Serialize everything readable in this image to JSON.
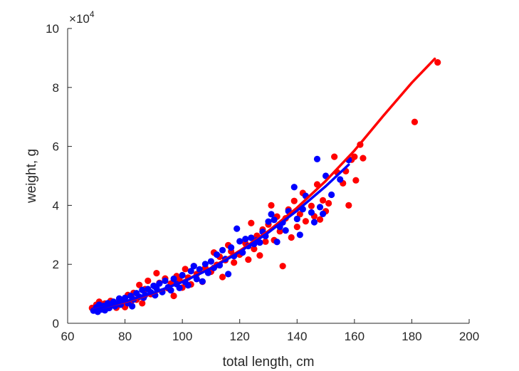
{
  "chart_data": {
    "type": "scatter",
    "title": "",
    "xlabel": "total length, cm",
    "ylabel": "weight, g",
    "xlim": [
      60,
      200
    ],
    "ylim": [
      0,
      100000
    ],
    "xticks": [
      60,
      80,
      100,
      120,
      140,
      160,
      180,
      200
    ],
    "yticks": [
      0,
      20000,
      40000,
      60000,
      80000,
      100000
    ],
    "ytick_labels": [
      "0",
      "2",
      "4",
      "6",
      "8",
      "10"
    ],
    "y_exponent": {
      "base": "10",
      "power": "4"
    },
    "grid": false,
    "series": [
      {
        "name": "red",
        "color": "#ff0000",
        "points": [
          [
            68.5,
            5200
          ],
          [
            70.0,
            6300
          ],
          [
            71.0,
            7300
          ],
          [
            72.0,
            4800
          ],
          [
            73.0,
            6700
          ],
          [
            74.0,
            5600
          ],
          [
            75.0,
            7600
          ],
          [
            76.0,
            6100
          ],
          [
            77.0,
            5300
          ],
          [
            78.0,
            8300
          ],
          [
            79.0,
            6900
          ],
          [
            80.0,
            5500
          ],
          [
            81.0,
            9600
          ],
          [
            82.0,
            7100
          ],
          [
            83.0,
            10300
          ],
          [
            84.0,
            8000
          ],
          [
            85.0,
            13000
          ],
          [
            86.0,
            6800
          ],
          [
            87.0,
            11600
          ],
          [
            88.0,
            14400
          ],
          [
            89.0,
            9900
          ],
          [
            90.0,
            12700
          ],
          [
            91.0,
            17000
          ],
          [
            92.0,
            13700
          ],
          [
            93.0,
            10800
          ],
          [
            94.0,
            15200
          ],
          [
            95.0,
            11900
          ],
          [
            96.0,
            13500
          ],
          [
            97.0,
            9300
          ],
          [
            98.0,
            16000
          ],
          [
            99.0,
            14700
          ],
          [
            100.0,
            12100
          ],
          [
            101.0,
            18400
          ],
          [
            102.0,
            15500
          ],
          [
            103.0,
            13200
          ],
          [
            104.0,
            19400
          ],
          [
            105.0,
            16700
          ],
          [
            107.0,
            14100
          ],
          [
            108.0,
            18800
          ],
          [
            110.0,
            17500
          ],
          [
            111.0,
            24000
          ],
          [
            112.0,
            19800
          ],
          [
            113.0,
            22600
          ],
          [
            114.0,
            15700
          ],
          [
            115.0,
            21400
          ],
          [
            116.0,
            26500
          ],
          [
            117.0,
            24400
          ],
          [
            118.0,
            20600
          ],
          [
            120.0,
            23300
          ],
          [
            122.0,
            27100
          ],
          [
            123.0,
            21600
          ],
          [
            124.0,
            34000
          ],
          [
            125.0,
            25200
          ],
          [
            126.0,
            29700
          ],
          [
            127.0,
            23000
          ],
          [
            128.0,
            31800
          ],
          [
            129.0,
            27700
          ],
          [
            130.0,
            33500
          ],
          [
            131.0,
            40000
          ],
          [
            132.0,
            28200
          ],
          [
            133.0,
            36200
          ],
          [
            134.0,
            31200
          ],
          [
            135.0,
            19400
          ],
          [
            136.0,
            35600
          ],
          [
            137.0,
            38600
          ],
          [
            138.0,
            29100
          ],
          [
            139.0,
            41500
          ],
          [
            140.0,
            32700
          ],
          [
            141.0,
            37000
          ],
          [
            142.0,
            44200
          ],
          [
            143.0,
            34600
          ],
          [
            145.0,
            39800
          ],
          [
            146.0,
            36300
          ],
          [
            147.0,
            47100
          ],
          [
            148.0,
            35200
          ],
          [
            149.0,
            41700
          ],
          [
            150.0,
            38000
          ],
          [
            151.0,
            40700
          ],
          [
            153.0,
            56500
          ],
          [
            154.0,
            51200
          ],
          [
            156.0,
            47500
          ],
          [
            157.0,
            51600
          ],
          [
            158.0,
            40000
          ],
          [
            159.0,
            55500
          ],
          [
            160.0,
            56500
          ],
          [
            160.5,
            48500
          ],
          [
            162.0,
            60600
          ],
          [
            163.0,
            56000
          ],
          [
            181.0,
            68300
          ],
          [
            189.0,
            88500
          ]
        ],
        "fit": {
          "model": "power",
          "x": [
            69,
            80,
            90,
            100,
            110,
            120,
            130,
            140,
            150,
            160,
            170,
            180,
            188
          ],
          "y": [
            4600,
            7200,
            10200,
            14100,
            18800,
            24600,
            31300,
            39200,
            48300,
            58600,
            70300,
            81600,
            89700
          ]
        }
      },
      {
        "name": "blue",
        "color": "#0000ff",
        "points": [
          [
            69.0,
            4300
          ],
          [
            70.0,
            5400
          ],
          [
            70.5,
            3900
          ],
          [
            71.0,
            6300
          ],
          [
            72.0,
            4700
          ],
          [
            72.5,
            5900
          ],
          [
            73.0,
            4400
          ],
          [
            74.0,
            6800
          ],
          [
            74.5,
            5200
          ],
          [
            75.0,
            6100
          ],
          [
            76.0,
            7300
          ],
          [
            76.5,
            5800
          ],
          [
            77.0,
            6600
          ],
          [
            78.0,
            8400
          ],
          [
            78.5,
            6300
          ],
          [
            79.0,
            7700
          ],
          [
            80.0,
            8600
          ],
          [
            81.0,
            6800
          ],
          [
            82.0,
            9300
          ],
          [
            82.5,
            5800
          ],
          [
            83.0,
            8100
          ],
          [
            84.0,
            10200
          ],
          [
            85.0,
            9000
          ],
          [
            86.0,
            11300
          ],
          [
            86.5,
            8700
          ],
          [
            87.0,
            9600
          ],
          [
            88.0,
            11600
          ],
          [
            89.0,
            10500
          ],
          [
            90.0,
            12700
          ],
          [
            90.5,
            9500
          ],
          [
            91.0,
            11800
          ],
          [
            92.0,
            13500
          ],
          [
            93.0,
            10600
          ],
          [
            94.0,
            14400
          ],
          [
            95.0,
            12200
          ],
          [
            96.0,
            11200
          ],
          [
            97.0,
            15100
          ],
          [
            98.0,
            13300
          ],
          [
            99.0,
            12000
          ],
          [
            100.0,
            16300
          ],
          [
            101.0,
            14000
          ],
          [
            102.0,
            12900
          ],
          [
            103.0,
            17700
          ],
          [
            104.0,
            19400
          ],
          [
            105.0,
            15000
          ],
          [
            106.0,
            18300
          ],
          [
            107.0,
            14200
          ],
          [
            108.0,
            20100
          ],
          [
            109.0,
            17100
          ],
          [
            110.0,
            21000
          ],
          [
            111.0,
            18800
          ],
          [
            112.0,
            23300
          ],
          [
            113.0,
            19700
          ],
          [
            114.0,
            24800
          ],
          [
            115.0,
            21800
          ],
          [
            116.0,
            16700
          ],
          [
            117.0,
            25700
          ],
          [
            118.0,
            22800
          ],
          [
            119.0,
            32100
          ],
          [
            120.0,
            27800
          ],
          [
            121.0,
            24000
          ],
          [
            122.0,
            28600
          ],
          [
            123.0,
            26200
          ],
          [
            124.0,
            29000
          ],
          [
            125.0,
            26900
          ],
          [
            126.0,
            28200
          ],
          [
            127.0,
            27400
          ],
          [
            128.0,
            31000
          ],
          [
            129.0,
            29600
          ],
          [
            130.0,
            34500
          ],
          [
            131.0,
            37000
          ],
          [
            132.0,
            35100
          ],
          [
            133.0,
            27600
          ],
          [
            134.0,
            32700
          ],
          [
            135.0,
            34200
          ],
          [
            136.0,
            31500
          ],
          [
            137.0,
            38000
          ],
          [
            139.0,
            46200
          ],
          [
            140.0,
            35400
          ],
          [
            141.0,
            30000
          ],
          [
            142.0,
            38700
          ],
          [
            143.0,
            43200
          ],
          [
            145.0,
            37600
          ],
          [
            146.0,
            34300
          ],
          [
            147.0,
            55700
          ],
          [
            148.0,
            39400
          ],
          [
            149.0,
            37100
          ],
          [
            150.0,
            50000
          ],
          [
            152.0,
            43600
          ],
          [
            155.0,
            48800
          ],
          [
            158.0,
            55400
          ]
        ],
        "fit": {
          "model": "power",
          "x": [
            69,
            80,
            90,
            100,
            110,
            120,
            130,
            140,
            150,
            158
          ],
          "y": [
            4500,
            7400,
            10400,
            14000,
            18600,
            24200,
            30800,
            38200,
            46500,
            53800
          ]
        }
      }
    ]
  }
}
